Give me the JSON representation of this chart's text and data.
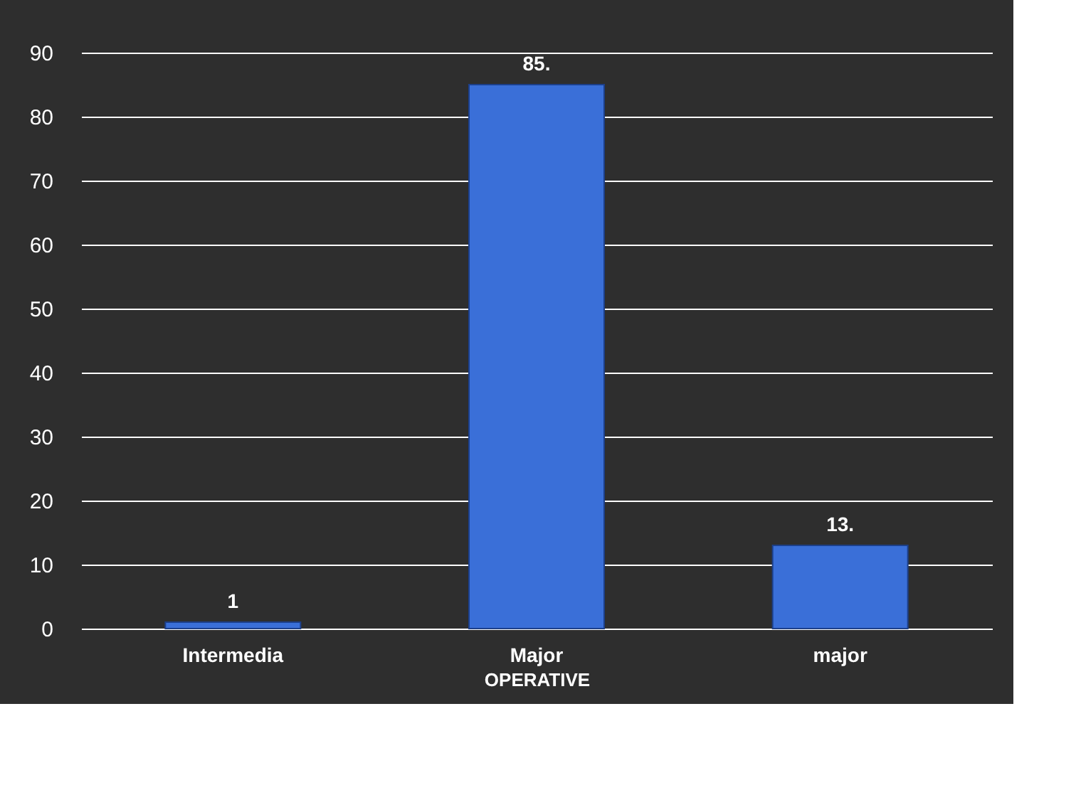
{
  "chart_data": {
    "type": "bar",
    "xlabel": "OPERATIVE",
    "categories": [
      "Intermedia",
      "Major",
      "major"
    ],
    "values": [
      1,
      85,
      13
    ],
    "value_labels": [
      "1",
      "85.",
      "13."
    ],
    "color": "#3a6fd8",
    "ylim": [
      0,
      90
    ],
    "yticks": [
      0,
      10,
      20,
      30,
      40,
      50,
      60,
      70,
      80,
      90
    ],
    "grid": "y"
  }
}
